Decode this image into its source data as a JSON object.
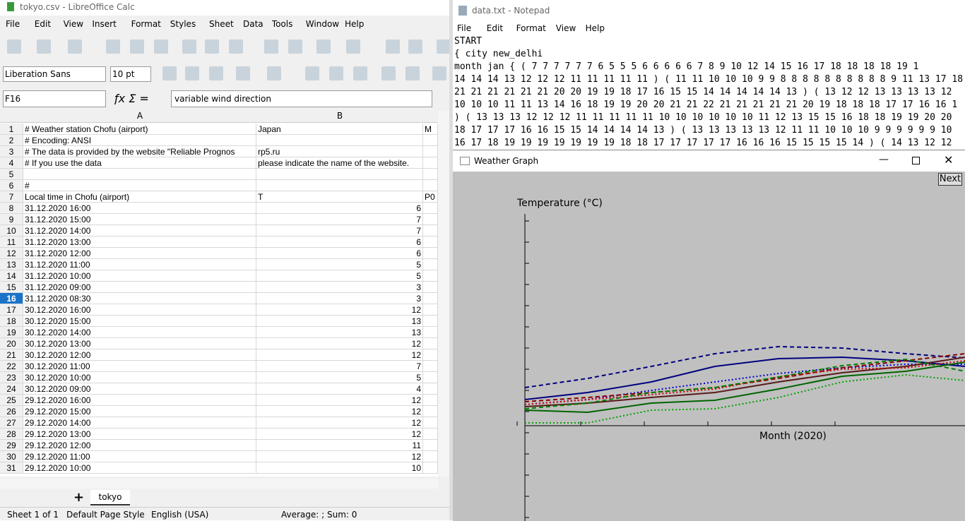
{
  "calc": {
    "title": "tokyo.csv - LibreOffice Calc",
    "menu": [
      "File",
      "Edit",
      "View",
      "Insert",
      "Format",
      "Styles",
      "Sheet",
      "Data",
      "Tools",
      "Window",
      "Help"
    ],
    "font_name": "Liberation Sans",
    "font_size": "10 pt",
    "cell_ref": "F16",
    "formula": "variable wind direction",
    "columns": [
      "A",
      "B"
    ],
    "active_row": 16,
    "rows": [
      {
        "n": 1,
        "a": "# Weather station Chofu (airport)",
        "b": "Japan",
        "c": "M"
      },
      {
        "n": 2,
        "a": "# Encoding: ANSI"
      },
      {
        "n": 3,
        "a": "# The data is provided by the website \"Reliable Prognos",
        "b": "rp5.ru"
      },
      {
        "n": 4,
        "a": "# If you use the data",
        "b": "please indicate the name of the website."
      },
      {
        "n": 5
      },
      {
        "n": 6,
        "a": "#"
      },
      {
        "n": 7,
        "a": "Local time in Chofu (airport)",
        "b": "T",
        "c": "P0"
      },
      {
        "n": 8,
        "a": "31.12.2020 16:00",
        "b": 6
      },
      {
        "n": 9,
        "a": "31.12.2020 15:00",
        "b": 7
      },
      {
        "n": 10,
        "a": "31.12.2020 14:00",
        "b": 7
      },
      {
        "n": 11,
        "a": "31.12.2020 13:00",
        "b": 6
      },
      {
        "n": 12,
        "a": "31.12.2020 12:00",
        "b": 6
      },
      {
        "n": 13,
        "a": "31.12.2020 11:00",
        "b": 5
      },
      {
        "n": 14,
        "a": "31.12.2020 10:00",
        "b": 5
      },
      {
        "n": 15,
        "a": "31.12.2020 09:00",
        "b": 3
      },
      {
        "n": 16,
        "a": "31.12.2020 08:30",
        "b": 3
      },
      {
        "n": 17,
        "a": "30.12.2020 16:00",
        "b": 12
      },
      {
        "n": 18,
        "a": "30.12.2020 15:00",
        "b": 13
      },
      {
        "n": 19,
        "a": "30.12.2020 14:00",
        "b": 13
      },
      {
        "n": 20,
        "a": "30.12.2020 13:00",
        "b": 12
      },
      {
        "n": 21,
        "a": "30.12.2020 12:00",
        "b": 12
      },
      {
        "n": 22,
        "a": "30.12.2020 11:00",
        "b": 7
      },
      {
        "n": 23,
        "a": "30.12.2020 10:00",
        "b": 5
      },
      {
        "n": 24,
        "a": "30.12.2020 09:00",
        "b": 4
      },
      {
        "n": 25,
        "a": "29.12.2020 16:00",
        "b": 12
      },
      {
        "n": 26,
        "a": "29.12.2020 15:00",
        "b": 12
      },
      {
        "n": 27,
        "a": "29.12.2020 14:00",
        "b": 12
      },
      {
        "n": 28,
        "a": "29.12.2020 13:00",
        "b": 12
      },
      {
        "n": 29,
        "a": "29.12.2020 12:00",
        "b": 11
      },
      {
        "n": 30,
        "a": "29.12.2020 11:00",
        "b": 12
      },
      {
        "n": 31,
        "a": "29.12.2020 10:00",
        "b": 10
      }
    ],
    "sheet_tab": "tokyo",
    "status": [
      "Sheet 1 of 1",
      "Default Page Style",
      "English (USA)",
      "Average: ; Sum: 0"
    ]
  },
  "notepad": {
    "title": "data.txt - Notepad",
    "menu": [
      "File",
      "Edit",
      "Format",
      "View",
      "Help"
    ],
    "lines": [
      "START",
      "{ city new_delhi",
      "  month jan { ( 7 7 7 7 7 7 6 5 5 5 6 6 6 6 6 7 8 9 10 12 14 15 16 17 18 18 18 18 19 1",
      "14 14 14 13 12 12 12 11 11 11 11 11 ) ( 11 11 10 10 10 9 9 8 8 8 8 8 8 8 8 8 8 9 11 13 17 18 1",
      "21 21 21 21 21 21 20 20 19 19 18 17 16 15 15 14 14 14 14 14 13 ) ( 13 12 12 13 13 13 13 12",
      "10 10 10 11 11 13 14 16 18 19 19 20 20 21 21 22 21 21 21 21 21 20 19 18 18 18 17 17 16 16 1",
      ") ( 13 13 13 12 12 12 11 11 11 11 11 10 10 10 10 10 10 11 12 13 15 15 16 18 18 19 19 20 20",
      "18 17 17 17 16 16 15 15 14 14 14 14 13 ) ( 13 13 13 13 13 12 11 11 10 10 10 9 9 9 9 9 9 10",
      "16 17 18 19 19 19 19 19 19 19 18 18 17 17 17 17 17 16 16 16 15 15 15 15 14 ) ( 14 13 12 12"
    ]
  },
  "graph": {
    "title": "Weather Graph",
    "button": "Next",
    "y_label": "Temperature (°C)",
    "x_label": "Month (2020)"
  }
}
